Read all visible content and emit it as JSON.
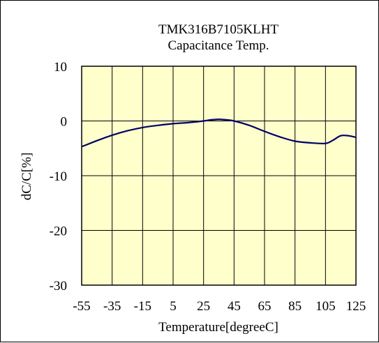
{
  "chart_data": {
    "type": "line",
    "title": "TMK316B7105KLHT",
    "subtitle": "Capacitance Temp.",
    "xlabel": "Temperature[degreeC]",
    "ylabel": "dC/C[%]",
    "xlim": [
      -55,
      125
    ],
    "ylim": [
      -30,
      10
    ],
    "xticks": [
      -55,
      -35,
      -15,
      5,
      25,
      45,
      65,
      85,
      105,
      125
    ],
    "yticks": [
      10,
      0,
      -10,
      -20,
      -30
    ],
    "grid": true,
    "legend": "none",
    "plot_background": "#ffffcc",
    "series": [
      {
        "color": "#000066",
        "x": [
          -55,
          -45,
          -35,
          -25,
          -15,
          -5,
          5,
          15,
          25,
          30,
          35,
          40,
          45,
          55,
          65,
          75,
          85,
          95,
          105,
          110,
          115,
          120,
          125
        ],
        "y": [
          -4.7,
          -3.6,
          -2.6,
          -1.8,
          -1.2,
          -0.8,
          -0.5,
          -0.3,
          0,
          0.2,
          0.3,
          0.2,
          0,
          -0.8,
          -1.9,
          -2.9,
          -3.7,
          -4.0,
          -4.1,
          -3.5,
          -2.7,
          -2.7,
          -3.0
        ]
      }
    ]
  }
}
